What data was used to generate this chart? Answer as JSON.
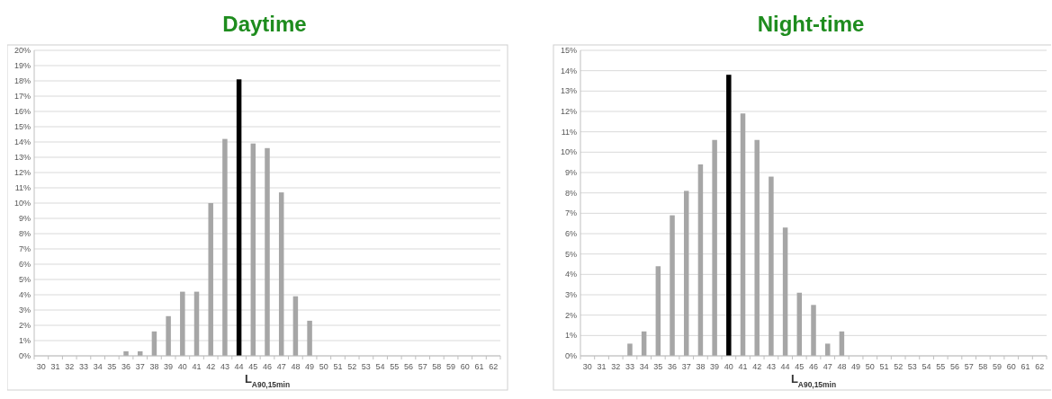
{
  "chart_data": [
    {
      "type": "bar",
      "title": "Daytime",
      "xlabel": "L$_{A90,15min}$",
      "categories": [
        "30",
        "31",
        "32",
        "33",
        "34",
        "35",
        "36",
        "37",
        "38",
        "39",
        "40",
        "41",
        "42",
        "43",
        "44",
        "45",
        "46",
        "47",
        "48",
        "49",
        "50",
        "51",
        "52",
        "53",
        "54",
        "55",
        "56",
        "57",
        "58",
        "59",
        "60",
        "61",
        "62"
      ],
      "values": [
        0,
        0,
        0,
        0,
        0,
        0,
        0.3,
        0.3,
        1.6,
        2.6,
        4.2,
        4.2,
        10.0,
        14.2,
        18.1,
        13.9,
        13.6,
        10.7,
        3.9,
        2.3,
        0,
        0,
        0,
        0,
        0,
        0,
        0,
        0,
        0,
        0,
        0,
        0,
        0
      ],
      "colors": [
        "#a6a6a6",
        "#a6a6a6",
        "#a6a6a6",
        "#a6a6a6",
        "#a6a6a6",
        "#a6a6a6",
        "#a6a6a6",
        "#a6a6a6",
        "#a6a6a6",
        "#a6a6a6",
        "#a6a6a6",
        "#a6a6a6",
        "#a6a6a6",
        "#a6a6a6",
        "#000000",
        "#a6a6a6",
        "#a6a6a6",
        "#a6a6a6",
        "#a6a6a6",
        "#a6a6a6",
        "#a6a6a6",
        "#a6a6a6",
        "#a6a6a6",
        "#a6a6a6",
        "#a6a6a6",
        "#a6a6a6",
        "#a6a6a6",
        "#a6a6a6",
        "#a6a6a6",
        "#a6a6a6",
        "#a6a6a6",
        "#a6a6a6",
        "#a6a6a6"
      ],
      "ylim": [
        0,
        20
      ],
      "yticks": [
        {
          "value": 0,
          "label": "0%"
        },
        {
          "value": 1,
          "label": "1%"
        },
        {
          "value": 2,
          "label": "2%"
        },
        {
          "value": 3,
          "label": "3%"
        },
        {
          "value": 4,
          "label": "4%"
        },
        {
          "value": 5,
          "label": "5%"
        },
        {
          "value": 6,
          "label": "6%"
        },
        {
          "value": 7,
          "label": "7%"
        },
        {
          "value": 8,
          "label": "8%"
        },
        {
          "value": 9,
          "label": "9%"
        },
        {
          "value": 10,
          "label": "10%"
        },
        {
          "value": 11,
          "label": "11%"
        },
        {
          "value": 12,
          "label": "12%"
        },
        {
          "value": 13,
          "label": "13%"
        },
        {
          "value": 14,
          "label": "14%"
        },
        {
          "value": 15,
          "label": "15%"
        },
        {
          "value": 16,
          "label": "16%"
        },
        {
          "value": 17,
          "label": "17%"
        },
        {
          "value": 18,
          "label": "18%"
        },
        {
          "value": 19,
          "label": "19%"
        },
        {
          "value": 20,
          "label": "20%"
        }
      ],
      "grid": "y"
    },
    {
      "type": "bar",
      "title": "Night-time",
      "xlabel": "L$_{A90,15min}$",
      "categories": [
        "30",
        "31",
        "32",
        "33",
        "34",
        "35",
        "36",
        "37",
        "38",
        "39",
        "40",
        "41",
        "42",
        "43",
        "44",
        "45",
        "46",
        "47",
        "48",
        "49",
        "50",
        "51",
        "52",
        "53",
        "54",
        "55",
        "56",
        "57",
        "58",
        "59",
        "60",
        "61",
        "62"
      ],
      "values": [
        0,
        0,
        0,
        0.6,
        1.2,
        4.4,
        6.9,
        8.1,
        9.4,
        10.6,
        13.8,
        11.9,
        10.6,
        8.8,
        6.3,
        3.1,
        2.5,
        0.6,
        1.2,
        0,
        0,
        0,
        0,
        0,
        0,
        0,
        0,
        0,
        0,
        0,
        0,
        0,
        0
      ],
      "colors": [
        "#a6a6a6",
        "#a6a6a6",
        "#a6a6a6",
        "#a6a6a6",
        "#a6a6a6",
        "#a6a6a6",
        "#a6a6a6",
        "#a6a6a6",
        "#a6a6a6",
        "#a6a6a6",
        "#000000",
        "#a6a6a6",
        "#a6a6a6",
        "#a6a6a6",
        "#a6a6a6",
        "#a6a6a6",
        "#a6a6a6",
        "#a6a6a6",
        "#a6a6a6",
        "#a6a6a6",
        "#a6a6a6",
        "#a6a6a6",
        "#a6a6a6",
        "#a6a6a6",
        "#a6a6a6",
        "#a6a6a6",
        "#a6a6a6",
        "#a6a6a6",
        "#a6a6a6",
        "#a6a6a6",
        "#a6a6a6",
        "#a6a6a6",
        "#a6a6a6"
      ],
      "ylim": [
        0,
        15
      ],
      "yticks": [
        {
          "value": 0,
          "label": "0%"
        },
        {
          "value": 1,
          "label": "1%"
        },
        {
          "value": 2,
          "label": "2%"
        },
        {
          "value": 3,
          "label": "3%"
        },
        {
          "value": 4,
          "label": "4%"
        },
        {
          "value": 5,
          "label": "5%"
        },
        {
          "value": 6,
          "label": "6%"
        },
        {
          "value": 7,
          "label": "7%"
        },
        {
          "value": 8,
          "label": "8%"
        },
        {
          "value": 9,
          "label": "9%"
        },
        {
          "value": 10,
          "label": "10%"
        },
        {
          "value": 11,
          "label": "11%"
        },
        {
          "value": 12,
          "label": "12%"
        },
        {
          "value": 13,
          "label": "13%"
        },
        {
          "value": 14,
          "label": "14%"
        },
        {
          "value": 15,
          "label": "15%"
        }
      ],
      "grid": "y"
    }
  ]
}
